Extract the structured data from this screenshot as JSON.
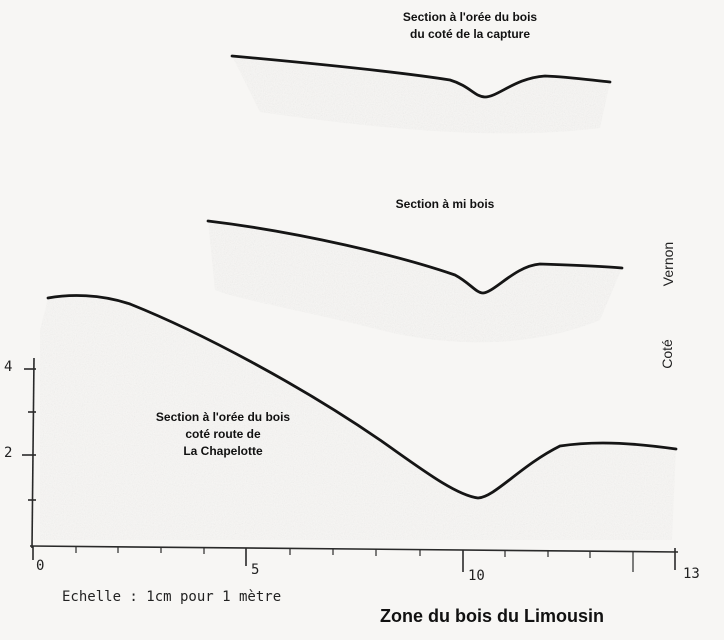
{
  "sections": [
    {
      "id": "top",
      "label_lines": [
        "Section à l'orée du bois",
        "du coté de la capture"
      ]
    },
    {
      "id": "middle",
      "label_lines": [
        "Section à mi bois"
      ]
    },
    {
      "id": "bottom",
      "label_lines": [
        "Section à l'orée du bois",
        "coté  route de",
        "La Chapelotte"
      ]
    }
  ],
  "axes": {
    "x_ticks": [
      "0",
      "5",
      "10",
      "13"
    ],
    "y_ticks": [
      "4",
      "2"
    ]
  },
  "side_label": {
    "word1": "Coté",
    "word2": "Vernon"
  },
  "scale_note": "Echelle : 1cm pour 1 mètre",
  "zone_title": "Zone du bois du Limousin"
}
